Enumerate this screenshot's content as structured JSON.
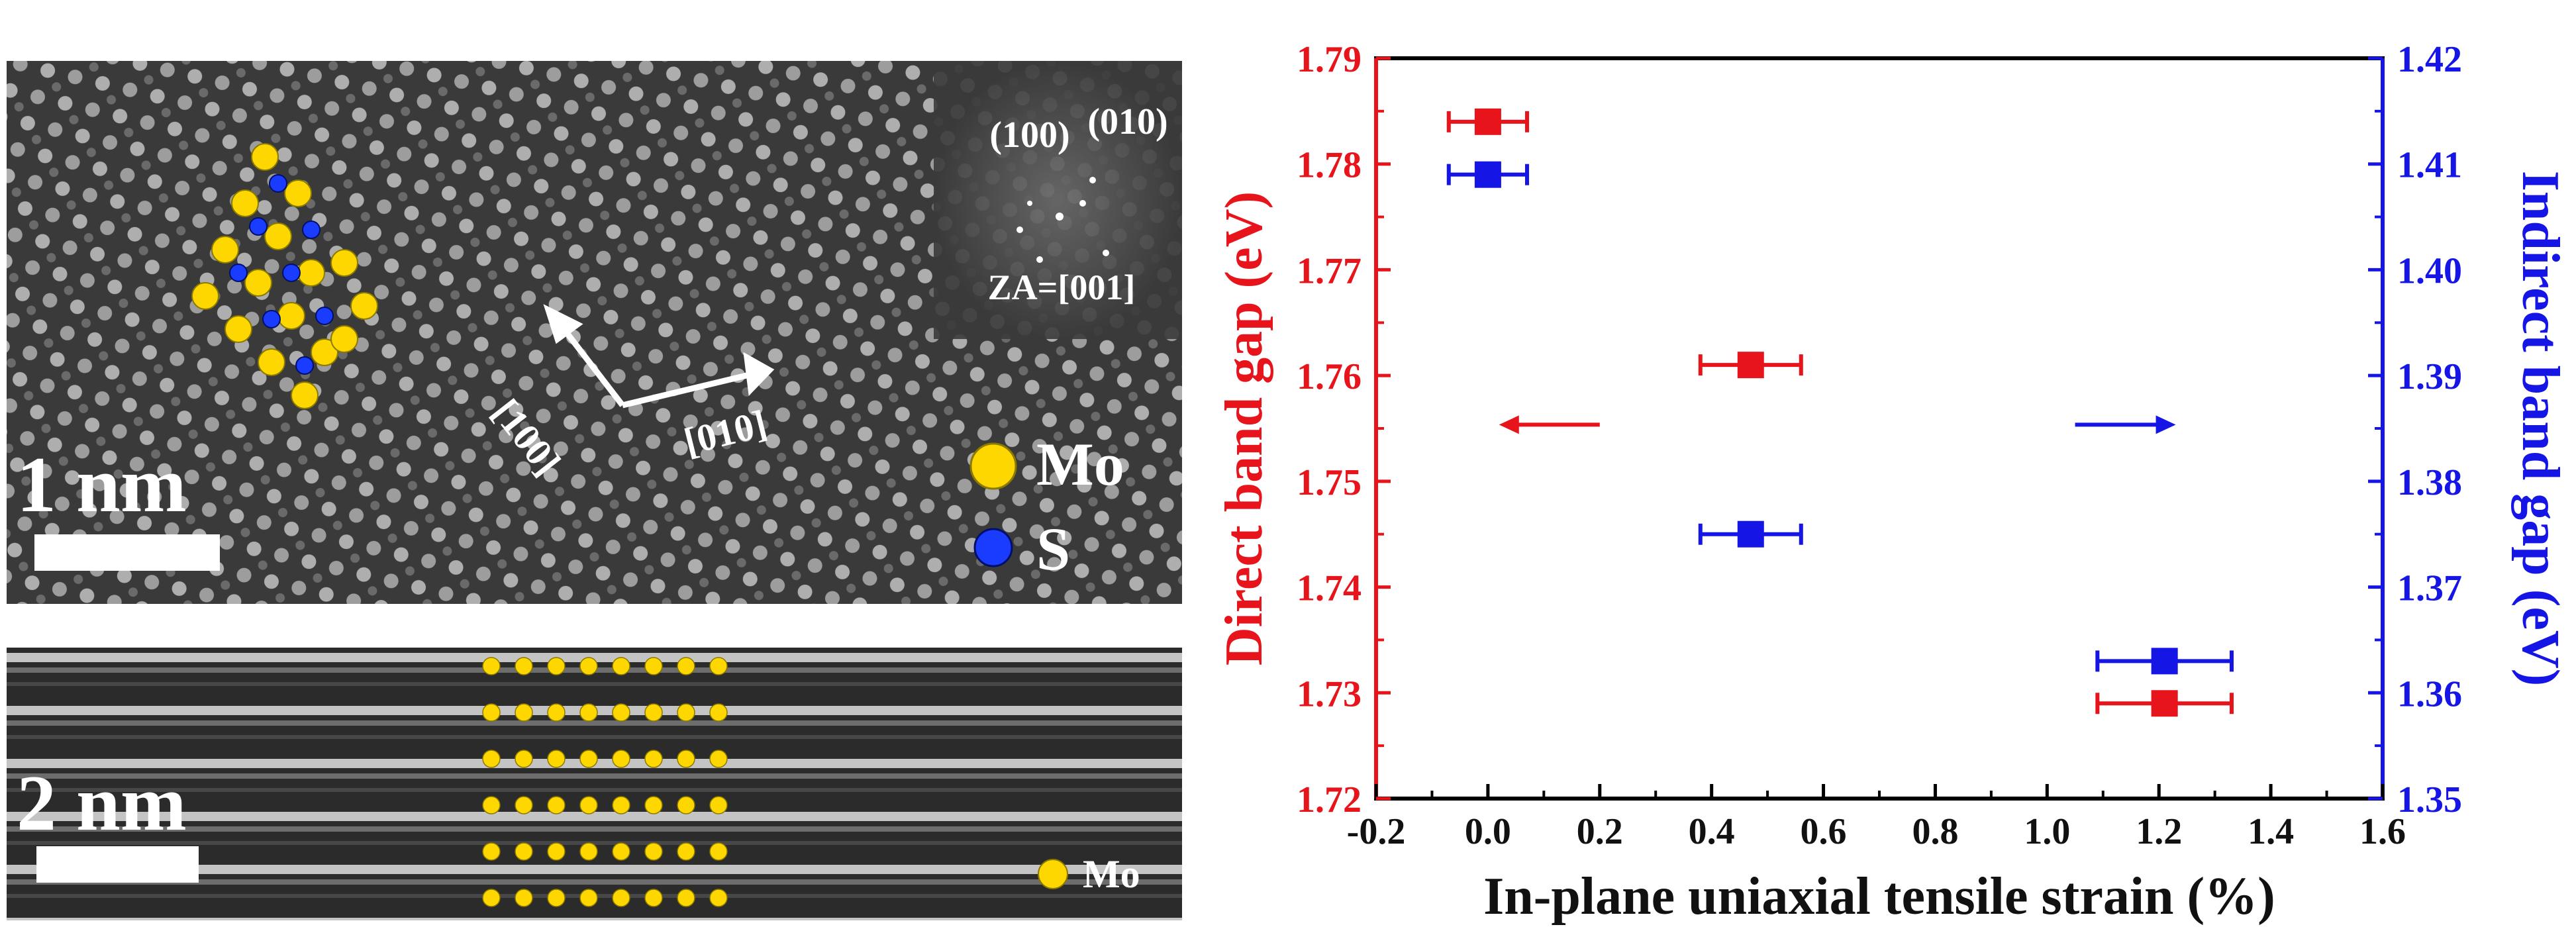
{
  "micrograph_top": {
    "scale_label": "1 nm",
    "fft_labels": [
      "(100)",
      "(010)",
      "ZA=[001]"
    ],
    "directions": [
      "[100]",
      "[010]"
    ],
    "legend": [
      {
        "label": "Mo",
        "color": "#ffd700"
      },
      {
        "label": "S",
        "color": "#1a3cff"
      }
    ]
  },
  "micrograph_bottom": {
    "scale_label": "2 nm",
    "legend": [
      {
        "label": "Mo",
        "color": "#ffd700"
      }
    ]
  },
  "chart_data": {
    "type": "scatter",
    "xlabel": "In-plane uniaxial tensile strain (%)",
    "ylabel": "Direct band gap (eV)",
    "y2label": "Indirect band gap (eV)",
    "xlim": [
      -0.2,
      1.6
    ],
    "ylim": [
      1.72,
      1.79
    ],
    "y2lim": [
      1.35,
      1.42
    ],
    "xticks": [
      "-0.2",
      "0.0",
      "0.2",
      "0.4",
      "0.6",
      "0.8",
      "1.0",
      "1.2",
      "1.4",
      "1.6"
    ],
    "yticks": [
      "1.72",
      "1.73",
      "1.74",
      "1.75",
      "1.76",
      "1.77",
      "1.78",
      "1.79"
    ],
    "y2ticks": [
      "1.35",
      "1.36",
      "1.37",
      "1.38",
      "1.39",
      "1.40",
      "1.41",
      "1.42"
    ],
    "grid": false,
    "series": [
      {
        "axis": "left",
        "color": "#e8141c",
        "points": [
          {
            "x": 0.0,
            "y": 1.784,
            "xerr": 0.07
          },
          {
            "x": 0.47,
            "y": 1.761,
            "xerr": 0.09
          },
          {
            "x": 1.21,
            "y": 1.729,
            "xerr": 0.12
          }
        ]
      },
      {
        "axis": "right",
        "color": "#1515e6",
        "points": [
          {
            "x": 0.0,
            "y": 1.409,
            "xerr": 0.07
          },
          {
            "x": 0.47,
            "y": 1.375,
            "xerr": 0.09
          },
          {
            "x": 1.21,
            "y": 1.363,
            "xerr": 0.12
          }
        ]
      }
    ],
    "annotations": [
      {
        "type": "arrow",
        "direction": "left",
        "series": "left",
        "color": "#e8141c"
      },
      {
        "type": "arrow",
        "direction": "right",
        "series": "right",
        "color": "#1515e6"
      }
    ]
  }
}
